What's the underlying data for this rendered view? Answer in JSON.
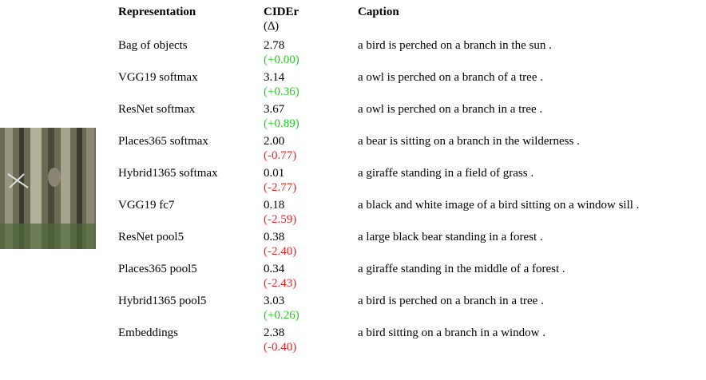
{
  "table": {
    "header": {
      "representation": "Representation",
      "cider": "CIDEr",
      "delta": "(∆)",
      "caption": "Caption"
    },
    "rows": [
      {
        "representation": "Bag of objects",
        "cider": "2.78",
        "delta": "(+0.00)",
        "color": "#22cc22",
        "caption": "a bird is perched on a branch in the sun ."
      },
      {
        "representation": "VGG19 softmax",
        "cider": "3.14",
        "delta": "(+0.36)",
        "color": "#22cc22",
        "caption": "a owl is perched on a branch of a tree ."
      },
      {
        "representation": "ResNet softmax",
        "cider": "3.67",
        "delta": "(+0.89)",
        "color": "#22cc22",
        "caption": "a owl is perched on a branch in a tree ."
      },
      {
        "representation": "Places365 softmax",
        "cider": "2.00",
        "delta": "(-0.77)",
        "color": "#ee2222",
        "caption": "a bear is sitting on a branch in the wilderness ."
      },
      {
        "representation": "Hybrid1365 softmax",
        "cider": "0.01",
        "delta": "(-2.77)",
        "color": "#ee2222",
        "caption": "a giraffe standing in a field of grass ."
      },
      {
        "representation": "VGG19 fc7",
        "cider": "0.18",
        "delta": "(-2.59)",
        "color": "#ee2222",
        "caption": "a black and white image of a bird sitting on a window sill ."
      },
      {
        "representation": "ResNet pool5",
        "cider": "0.38",
        "delta": "(-2.40)",
        "color": "#ee2222",
        "caption": "a large black bear standing in a forest ."
      },
      {
        "representation": "Places365 pool5",
        "cider": "0.34",
        "delta": "(-2.43)",
        "color": "#ee2222",
        "caption": "a giraffe standing in the middle of a forest ."
      },
      {
        "representation": "Hybrid1365 pool5",
        "cider": "3.03",
        "delta": "(+0.26)",
        "color": "#22cc22",
        "caption": "a bird is perched on a branch in a tree ."
      },
      {
        "representation": "Embeddings",
        "cider": "2.38",
        "delta": "(-0.40)",
        "color": "#ee2222",
        "caption": "a bird sitting on a branch in a window ."
      }
    ]
  }
}
